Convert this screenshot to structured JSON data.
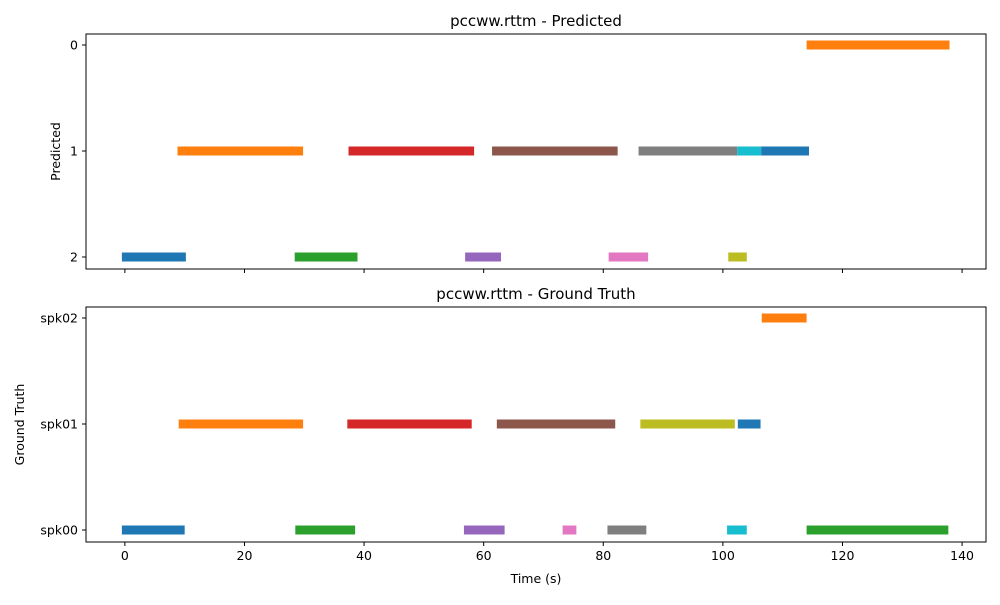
{
  "chart_data": [
    {
      "type": "timeline",
      "title": "pccww.rttm - Predicted",
      "ylabel": "Predicted",
      "xlabel": "",
      "xlim": [
        -6.5,
        144
      ],
      "xticks": [
        0,
        20,
        40,
        60,
        80,
        100,
        120,
        140
      ],
      "xtick_labels_visible": false,
      "rows": [
        "0",
        "1",
        "2"
      ],
      "segments": [
        {
          "row": "2",
          "start": -0.5,
          "end": 10.2,
          "color": "#1f77b4"
        },
        {
          "row": "1",
          "start": 8.8,
          "end": 29.8,
          "color": "#ff7f0e"
        },
        {
          "row": "2",
          "start": 28.4,
          "end": 38.9,
          "color": "#2ca02c"
        },
        {
          "row": "1",
          "start": 37.4,
          "end": 58.4,
          "color": "#d62728"
        },
        {
          "row": "2",
          "start": 56.9,
          "end": 62.9,
          "color": "#9467bd"
        },
        {
          "row": "1",
          "start": 61.4,
          "end": 82.4,
          "color": "#8c564b"
        },
        {
          "row": "2",
          "start": 80.9,
          "end": 87.5,
          "color": "#e377c2"
        },
        {
          "row": "1",
          "start": 85.9,
          "end": 102.4,
          "color": "#7f7f7f"
        },
        {
          "row": "2",
          "start": 100.9,
          "end": 104.0,
          "color": "#bcbd22"
        },
        {
          "row": "1",
          "start": 102.4,
          "end": 106.4,
          "color": "#17becf"
        },
        {
          "row": "1",
          "start": 106.4,
          "end": 114.4,
          "color": "#1f77b4"
        },
        {
          "row": "0",
          "start": 114.0,
          "end": 137.9,
          "color": "#ff7f0e"
        }
      ]
    },
    {
      "type": "timeline",
      "title": "pccww.rttm - Ground Truth",
      "ylabel": "Ground Truth",
      "xlabel": "Time (s)",
      "xlim": [
        -6.5,
        144
      ],
      "xticks": [
        0,
        20,
        40,
        60,
        80,
        100,
        120,
        140
      ],
      "xtick_labels_visible": true,
      "rows": [
        "spk02",
        "spk01",
        "spk00"
      ],
      "segments": [
        {
          "row": "spk00",
          "start": -0.5,
          "end": 10.0,
          "color": "#1f77b4"
        },
        {
          "row": "spk01",
          "start": 9.0,
          "end": 29.8,
          "color": "#ff7f0e"
        },
        {
          "row": "spk00",
          "start": 28.5,
          "end": 38.5,
          "color": "#2ca02c"
        },
        {
          "row": "spk01",
          "start": 37.2,
          "end": 58.0,
          "color": "#d62728"
        },
        {
          "row": "spk00",
          "start": 56.7,
          "end": 63.5,
          "color": "#9467bd"
        },
        {
          "row": "spk01",
          "start": 62.2,
          "end": 82.0,
          "color": "#8c564b"
        },
        {
          "row": "spk00",
          "start": 73.2,
          "end": 75.5,
          "color": "#e377c2"
        },
        {
          "row": "spk00",
          "start": 80.7,
          "end": 87.2,
          "color": "#7f7f7f"
        },
        {
          "row": "spk01",
          "start": 86.2,
          "end": 102.0,
          "color": "#bcbd22"
        },
        {
          "row": "spk00",
          "start": 100.7,
          "end": 104.0,
          "color": "#17becf"
        },
        {
          "row": "spk01",
          "start": 102.5,
          "end": 106.3,
          "color": "#1f77b4"
        },
        {
          "row": "spk02",
          "start": 106.5,
          "end": 114.0,
          "color": "#ff7f0e"
        },
        {
          "row": "spk00",
          "start": 114.0,
          "end": 137.7,
          "color": "#2ca02c"
        }
      ]
    }
  ]
}
